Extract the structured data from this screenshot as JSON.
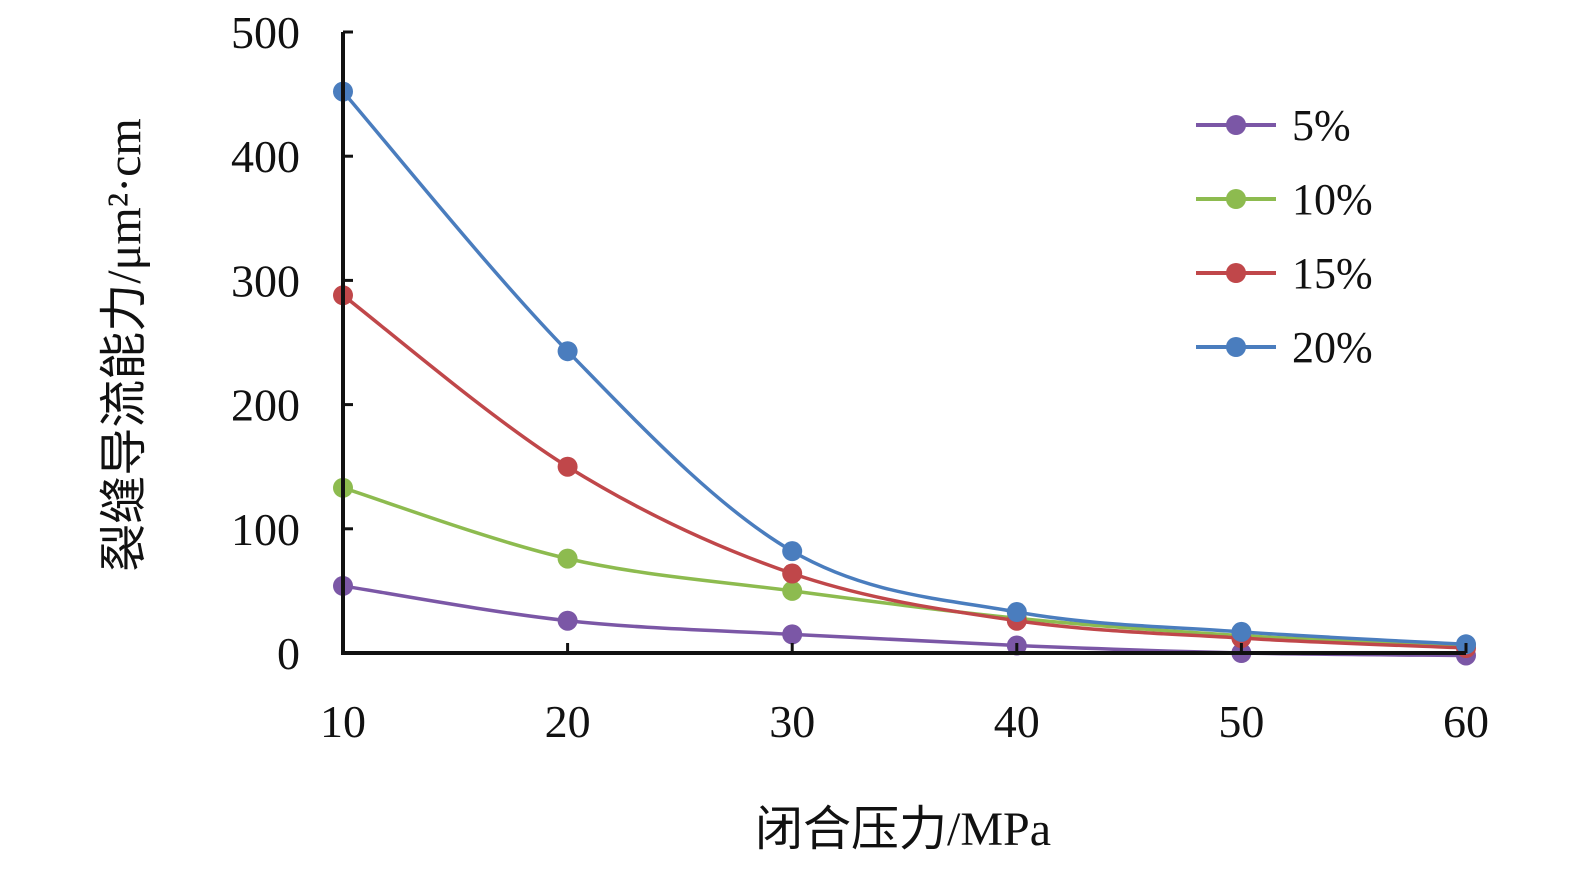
{
  "chart_data": {
    "type": "line",
    "title": "",
    "xlabel": "闭合压力/MPa",
    "ylabel": "裂缝导流能力/μm²·cm",
    "x": [
      10,
      20,
      30,
      40,
      50,
      60
    ],
    "xlim": [
      10,
      60
    ],
    "ylim": [
      0,
      500
    ],
    "xticks": [
      "10",
      "20",
      "30",
      "40",
      "50",
      "60"
    ],
    "yticks": [
      "0",
      "100",
      "200",
      "300",
      "400",
      "500"
    ],
    "grid": false,
    "legend_position": "top-right",
    "series": [
      {
        "name": "5%",
        "color": "#7B57A6",
        "values": [
          54,
          26,
          15,
          6,
          0,
          -2
        ]
      },
      {
        "name": "10%",
        "color": "#8DBB4F",
        "values": [
          133,
          76,
          50,
          28,
          14,
          6
        ]
      },
      {
        "name": "15%",
        "color": "#C0474A",
        "values": [
          288,
          150,
          64,
          26,
          12,
          4
        ]
      },
      {
        "name": "20%",
        "color": "#4A7DBE",
        "values": [
          452,
          243,
          82,
          33,
          17,
          7
        ]
      }
    ]
  }
}
